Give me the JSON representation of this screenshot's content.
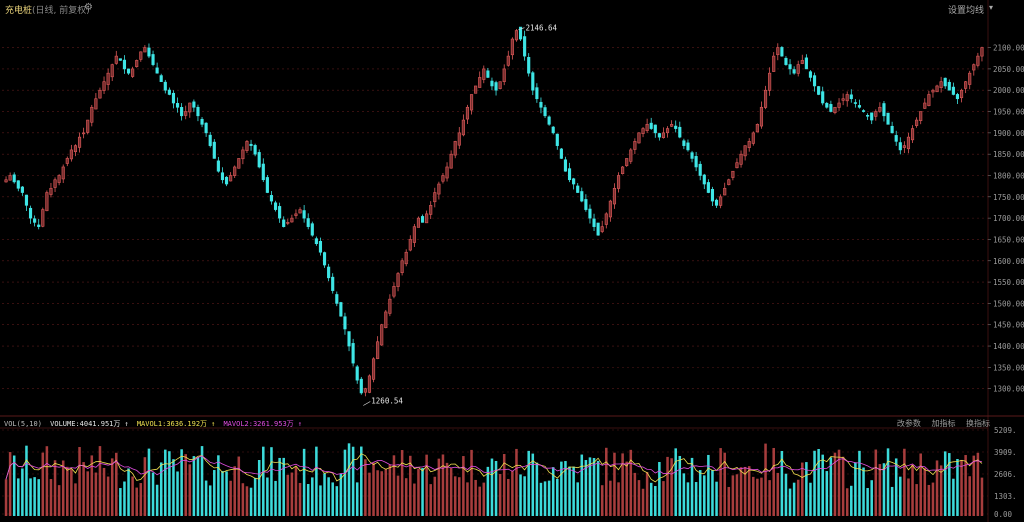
{
  "header": {
    "title": "充电桩",
    "subtitle": "(日线, 前复权)",
    "gear_icon": "gear-icon",
    "set_ma_label": "设置均线",
    "caret": "▾"
  },
  "price_axis": {
    "ticks": [
      "2100.00",
      "2050.00",
      "2000.00",
      "1950.00",
      "1900.00",
      "1850.00",
      "1800.00",
      "1750.00",
      "1700.00",
      "1650.00",
      "1600.00",
      "1550.00",
      "1500.00",
      "1450.00",
      "1400.00",
      "1350.00",
      "1300.00"
    ]
  },
  "markers": {
    "high": "2146.64",
    "low": "1260.54"
  },
  "volume_panel": {
    "name": "VOL(5,10)",
    "volume": "VOLUME:4041.951万",
    "mavol1": "MAVOL1:3636.192万",
    "mavol2": "MAVOL2:3261.953万",
    "arrow": "↑",
    "actions": [
      "改参数",
      "加指标",
      "换指标"
    ],
    "ticks": [
      "5209.",
      "3909.",
      "2606.",
      "1303.",
      "0.00"
    ]
  },
  "colors": {
    "up": "#e05a5a",
    "up_fill": "#7a2f2f",
    "down": "#3fe6e6",
    "grid": "#5a1a1a",
    "ma1": "#f0e050",
    "ma2": "#e04de0",
    "volume_text": "#e6e6e6"
  },
  "chart_data": {
    "type": "candlestick",
    "title": "充电桩",
    "price_axis_range": [
      1250,
      2160
    ],
    "volume_axis_range": [
      0,
      5209
    ],
    "price_max": 2146.64,
    "price_min": 1260.54,
    "close_series": [
      1790,
      1800,
      1785,
      1770,
      1760,
      1730,
      1700,
      1690,
      1680,
      1720,
      1760,
      1770,
      1790,
      1800,
      1820,
      1840,
      1860,
      1870,
      1890,
      1900,
      1930,
      1960,
      1980,
      2000,
      2020,
      2040,
      2060,
      2080,
      2070,
      2050,
      2040,
      2050,
      2070,
      2090,
      2100,
      2080,
      2060,
      2040,
      2020,
      2000,
      1990,
      1970,
      1960,
      1940,
      1950,
      1970,
      1960,
      1940,
      1920,
      1900,
      1870,
      1840,
      1810,
      1790,
      1780,
      1800,
      1820,
      1840,
      1860,
      1880,
      1870,
      1850,
      1820,
      1790,
      1760,
      1740,
      1720,
      1700,
      1680,
      1690,
      1700,
      1710,
      1720,
      1700,
      1680,
      1660,
      1640,
      1620,
      1590,
      1560,
      1530,
      1500,
      1470,
      1440,
      1400,
      1360,
      1320,
      1290,
      1300,
      1330,
      1370,
      1410,
      1450,
      1480,
      1510,
      1540,
      1570,
      1600,
      1620,
      1650,
      1680,
      1700,
      1690,
      1710,
      1730,
      1760,
      1780,
      1800,
      1820,
      1850,
      1880,
      1900,
      1930,
      1960,
      1990,
      2010,
      2030,
      2050,
      2030,
      2010,
      2000,
      2020,
      2050,
      2080,
      2120,
      2140,
      2120,
      2080,
      2040,
      2000,
      1980,
      1960,
      1940,
      1920,
      1900,
      1870,
      1840,
      1810,
      1790,
      1780,
      1760,
      1740,
      1720,
      1700,
      1680,
      1660,
      1680,
      1710,
      1740,
      1770,
      1800,
      1820,
      1840,
      1860,
      1880,
      1900,
      1910,
      1920,
      1910,
      1900,
      1890,
      1900,
      1910,
      1920,
      1910,
      1890,
      1870,
      1860,
      1840,
      1820,
      1800,
      1780,
      1760,
      1740,
      1730,
      1750,
      1770,
      1790,
      1810,
      1830,
      1850,
      1870,
      1880,
      1900,
      1920,
      1960,
      2000,
      2040,
      2080,
      2100,
      2080,
      2060,
      2050,
      2040,
      2060,
      2070,
      2050,
      2030,
      2010,
      1990,
      1970,
      1960,
      1950,
      1960,
      1970,
      1980,
      1990,
      1980,
      1970,
      1960,
      1950,
      1940,
      1930,
      1950,
      1960,
      1940,
      1920,
      1900,
      1880,
      1860,
      1870,
      1890,
      1910,
      1930,
      1950,
      1970,
      1990,
      2000,
      2010,
      2020,
      2010,
      2000,
      1990,
      1980,
      2000,
      2020,
      2040,
      2060,
      2080,
      2100
    ]
  }
}
